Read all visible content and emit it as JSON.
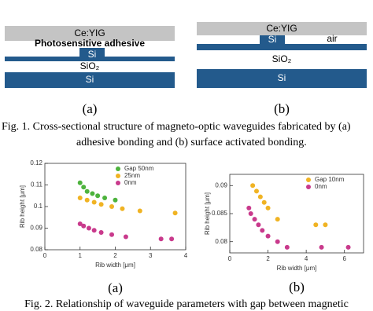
{
  "fig1": {
    "panel_a": {
      "ceyig": "Ce:YIG",
      "adhesive": "Photosensitive adhesive",
      "si_rib": "Si",
      "sio2": "SiO₂",
      "si_sub": "Si",
      "label": "(a)"
    },
    "panel_b": {
      "ceyig": "Ce:YIG",
      "air": "air",
      "si_rib": "Si",
      "sio2": "SiO₂",
      "si_sub": "Si",
      "label": "(b)"
    },
    "caption": [
      "Fig. 1.  Cross-sectional structure of magneto-optic waveguides fabricated by (a)",
      "adhesive bonding and (b) surface activated bonding."
    ]
  },
  "chart_data": [
    {
      "type": "scatter",
      "x_label": "Rib width [μm]",
      "y_label": "Rib height [μm]",
      "label": "(a)",
      "xlim": [
        0,
        4
      ],
      "xticks": [
        0,
        1,
        2,
        3,
        4
      ],
      "ylim": [
        0.08,
        0.12
      ],
      "yticks": [
        0.08,
        0.09,
        0.1,
        0.11,
        0.12
      ],
      "series": [
        {
          "name": "Gap 50nm",
          "color": "#4db33d",
          "x": [
            1,
            1.1,
            1.2,
            1.35,
            1.5,
            1.7,
            2
          ],
          "values": [
            0.111,
            0.109,
            0.107,
            0.106,
            0.105,
            0.104,
            0.103
          ]
        },
        {
          "name": "25nm",
          "color": "#f0b323",
          "x": [
            1,
            1.2,
            1.4,
            1.6,
            1.9,
            2.2,
            2.7,
            3.7
          ],
          "values": [
            0.104,
            0.103,
            0.102,
            0.101,
            0.1,
            0.099,
            0.098,
            0.097
          ]
        },
        {
          "name": "0nm",
          "color": "#c93a8c",
          "x": [
            1,
            1.1,
            1.25,
            1.4,
            1.6,
            1.9,
            2.3,
            3.3,
            3.6
          ],
          "values": [
            0.092,
            0.091,
            0.09,
            0.089,
            0.088,
            0.087,
            0.086,
            0.085,
            0.085
          ]
        }
      ]
    },
    {
      "type": "scatter",
      "x_label": "Rib width [μm]",
      "y_label": "Rib height [μm]",
      "label": "(b)",
      "xlim": [
        0,
        7
      ],
      "xticks": [
        0,
        2,
        4,
        6
      ],
      "ylim": [
        0.078,
        0.092
      ],
      "yticks": [
        0.08,
        0.085,
        0.09
      ],
      "series": [
        {
          "name": "Gap 10nm",
          "color": "#f0b323",
          "x": [
            1.2,
            1.4,
            1.6,
            1.8,
            2,
            2.5,
            4.5,
            5
          ],
          "values": [
            0.09,
            0.089,
            0.088,
            0.087,
            0.086,
            0.084,
            0.083,
            0.083
          ]
        },
        {
          "name": "0nm",
          "color": "#c93a8c",
          "x": [
            1,
            1.1,
            1.3,
            1.5,
            1.7,
            2,
            2.5,
            3,
            4.8,
            6.2
          ],
          "values": [
            0.086,
            0.085,
            0.084,
            0.083,
            0.082,
            0.081,
            0.08,
            0.079,
            0.079,
            0.079
          ]
        }
      ]
    }
  ],
  "fig2": {
    "caption": "Fig. 2.  Relationship of waveguide parameters with gap between magnetic"
  }
}
